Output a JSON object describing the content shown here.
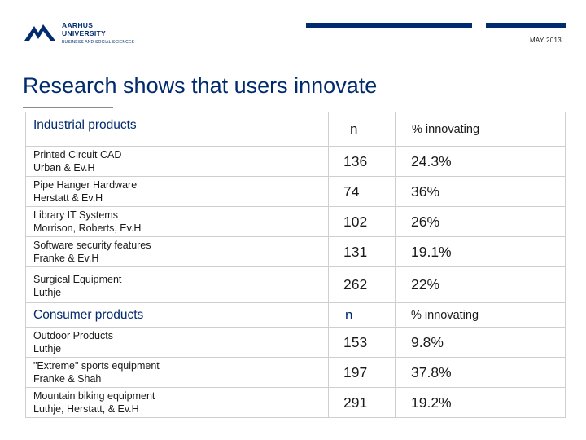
{
  "header": {
    "logo": {
      "line1": "AARHUS",
      "line2": "UNIVERSITY",
      "line3": "BUSINESS AND SOCIAL SCIENCES",
      "icon": "aarhus-wave-logo",
      "color": "#002b6e"
    },
    "date": "MAY 2013"
  },
  "title": "Research shows that users innovate",
  "accent_color": "#002b6e",
  "sections": [
    {
      "heading": "Industrial products",
      "n_label": "n",
      "pct_label": "% innovating",
      "rows": [
        {
          "line1": "Printed Circuit CAD",
          "line2": "Urban & Ev.H",
          "n": "136",
          "pct": "24.3%"
        },
        {
          "line1": "Pipe Hanger Hardware",
          "line2": "Herstatt & Ev.H",
          "n": "74",
          "pct": "36%"
        },
        {
          "line1": "Library IT Systems",
          "line2": "Morrison, Roberts, Ev.H",
          "n": "102",
          "pct": "26%"
        },
        {
          "line1": "Software security features",
          "line2": "Franke & Ev.H",
          "n": "131",
          "pct": "19.1%"
        },
        {
          "line1": "Surgical Equipment",
          "line2": "Luthje",
          "n": "262",
          "pct": "22%"
        }
      ]
    },
    {
      "heading": "Consumer products",
      "n_label": "n",
      "pct_label": "% innovating",
      "rows": [
        {
          "line1": "Outdoor Products",
          "line2": "Luthje",
          "n": "153",
          "pct": "9.8%"
        },
        {
          "line1": "\"Extreme\" sports equipment",
          "line2": "Franke & Shah",
          "n": "197",
          "pct": "37.8%"
        },
        {
          "line1": "Mountain biking equipment",
          "line2": "Luthje, Herstatt, & Ev.H",
          "n": "291",
          "pct": "19.2%"
        }
      ]
    }
  ]
}
